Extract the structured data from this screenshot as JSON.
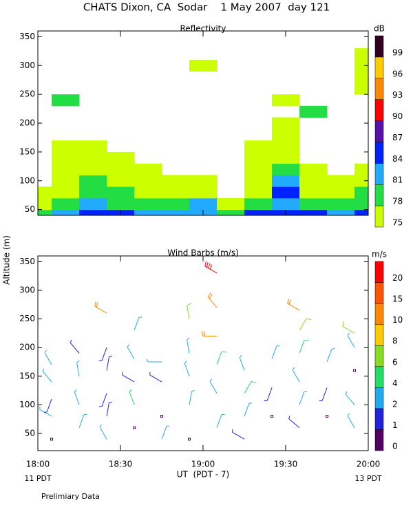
{
  "title": "CHATS Dixon, CA  Sodar    1 May 2007  day 121",
  "ylabel": "Altitude (m)",
  "note": "Prelimiary Data",
  "chart_data": [
    {
      "type": "heatmap",
      "title": "Reflectivity",
      "x": [
        0,
        10,
        20,
        30,
        40,
        50,
        60,
        70,
        80,
        90,
        100,
        110,
        120
      ],
      "altitudes": [
        40,
        60,
        80,
        100,
        120,
        140,
        160,
        180,
        200,
        220,
        240,
        260,
        280,
        300,
        320,
        340
      ],
      "z": [
        [
          79,
          83,
          84,
          84,
          82,
          83,
          82,
          79,
          84,
          85,
          84,
          83,
          84
        ],
        [
          77,
          79,
          81,
          80,
          79,
          80,
          81,
          75,
          79,
          82,
          79,
          80,
          80
        ],
        [
          75,
          77,
          79,
          78,
          76,
          77,
          77,
          null,
          77,
          84,
          77,
          77,
          78
        ],
        [
          null,
          76,
          78,
          76,
          75,
          75,
          75,
          null,
          76,
          81,
          75,
          75,
          76
        ],
        [
          null,
          76,
          77,
          75,
          75,
          null,
          null,
          null,
          76,
          78,
          75,
          null,
          75
        ],
        [
          null,
          75,
          76,
          75,
          null,
          null,
          null,
          null,
          75,
          76,
          null,
          null,
          null
        ],
        [
          null,
          75,
          75,
          null,
          null,
          null,
          null,
          null,
          75,
          75,
          null,
          null,
          null
        ],
        [
          null,
          null,
          null,
          null,
          null,
          null,
          null,
          null,
          null,
          75,
          null,
          null,
          null
        ],
        [
          null,
          null,
          null,
          null,
          null,
          null,
          null,
          null,
          null,
          75,
          null,
          null,
          null
        ],
        [
          null,
          null,
          null,
          null,
          null,
          null,
          null,
          null,
          null,
          null,
          80,
          null,
          null
        ],
        [
          null,
          79,
          null,
          null,
          null,
          null,
          null,
          null,
          null,
          75,
          null,
          null,
          null
        ],
        [
          null,
          null,
          null,
          null,
          null,
          null,
          null,
          null,
          null,
          null,
          null,
          null,
          75
        ],
        [
          null,
          null,
          null,
          null,
          null,
          null,
          null,
          null,
          null,
          null,
          null,
          null,
          75
        ],
        [
          null,
          null,
          null,
          null,
          null,
          null,
          75,
          null,
          null,
          null,
          null,
          null,
          75
        ],
        [
          null,
          null,
          null,
          null,
          null,
          null,
          null,
          null,
          null,
          null,
          null,
          null,
          75
        ],
        [
          null,
          null,
          null,
          null,
          null,
          null,
          null,
          null,
          null,
          null,
          null,
          null,
          null
        ]
      ],
      "ylim": [
        40,
        360
      ],
      "yticks": [
        50,
        100,
        150,
        200,
        250,
        300,
        350
      ],
      "colorbar": {
        "label": "dB",
        "levels": [
          75,
          78,
          81,
          84,
          87,
          90,
          93,
          96,
          99
        ],
        "colors": [
          "#ccff00",
          "#22dd44",
          "#22aaff",
          "#0022ff",
          "#5511aa",
          "#ff0000",
          "#ff8800",
          "#ffcc00",
          "#330022"
        ]
      }
    },
    {
      "type": "barbs",
      "title": "Wind Barbs (m/s)",
      "xlabel": "UT  (PDT - 7)",
      "x_corner_labels": [
        "11 PDT",
        "13 PDT"
      ],
      "xlim": [
        0,
        120
      ],
      "xticks": [
        {
          "value": 0,
          "label": "18:00"
        },
        {
          "value": 30,
          "label": "18:30"
        },
        {
          "value": 60,
          "label": "19:00"
        },
        {
          "value": 90,
          "label": "19:30"
        },
        {
          "value": 120,
          "label": "20:00"
        }
      ],
      "ylim": [
        20,
        360
      ],
      "yticks": [
        50,
        100,
        150,
        200,
        250,
        300,
        350
      ],
      "x": [
        5,
        5,
        5,
        5,
        5,
        15,
        15,
        15,
        15,
        25,
        25,
        25,
        25,
        25,
        25,
        35,
        35,
        35,
        35,
        35,
        45,
        45,
        45,
        45,
        55,
        55,
        55,
        55,
        55,
        65,
        65,
        65,
        65,
        65,
        65,
        75,
        75,
        75,
        75,
        85,
        85,
        85,
        95,
        95,
        95,
        95,
        95,
        95,
        105,
        105,
        105,
        115,
        115,
        115,
        115,
        115
      ],
      "altitudes": [
        40,
        80,
        110,
        140,
        170,
        60,
        100,
        150,
        190,
        40,
        80,
        120,
        160,
        200,
        260,
        60,
        100,
        140,
        180,
        230,
        40,
        80,
        140,
        175,
        40,
        100,
        150,
        190,
        250,
        60,
        120,
        170,
        220,
        270,
        330,
        40,
        80,
        120,
        160,
        80,
        130,
        180,
        60,
        100,
        140,
        190,
        230,
        265,
        80,
        130,
        175,
        60,
        100,
        160,
        200,
        225
      ],
      "speeds": [
        0.5,
        3,
        1.5,
        3,
        3,
        3,
        3,
        3,
        1.5,
        3,
        1.5,
        1.5,
        1.5,
        1.5,
        12,
        0.5,
        4.5,
        1.5,
        3,
        3,
        3,
        0.5,
        1.5,
        3,
        0.5,
        3,
        3,
        3,
        7,
        3,
        3,
        5,
        12,
        12,
        22,
        1.5,
        3,
        5,
        3,
        0.5,
        1.5,
        3,
        1.5,
        3,
        3,
        5,
        7,
        12,
        0.5,
        1.5,
        3,
        3,
        3,
        0.5,
        3,
        7
      ],
      "directions": [
        0,
        300,
        200,
        320,
        330,
        20,
        340,
        350,
        320,
        330,
        10,
        200,
        10,
        200,
        300,
        0,
        340,
        300,
        330,
        20,
        20,
        0,
        300,
        270,
        0,
        10,
        340,
        350,
        350,
        20,
        330,
        20,
        270,
        320,
        300,
        300,
        20,
        30,
        340,
        0,
        200,
        20,
        310,
        20,
        330,
        20,
        30,
        300,
        0,
        200,
        20,
        330,
        320,
        0,
        330,
        300
      ],
      "colorbar": {
        "label": "m/s",
        "levels": [
          0,
          1,
          2,
          4,
          6,
          8,
          10,
          15,
          20
        ],
        "colors": [
          "#550066",
          "#2222dd",
          "#22aaee",
          "#22dd66",
          "#88dd22",
          "#ffcc00",
          "#ff8800",
          "#ff5500",
          "#ff0000"
        ]
      }
    }
  ]
}
